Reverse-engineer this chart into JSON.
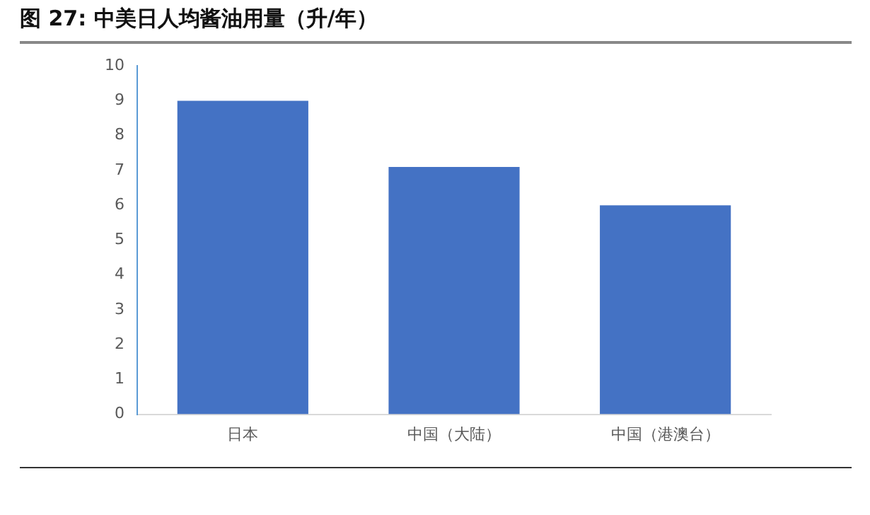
{
  "chart_data": {
    "type": "bar",
    "title": "图 27:  中美日人均酱油用量（升/年）",
    "categories": [
      "日本",
      "中国（大陆）",
      "中国（港澳台）"
    ],
    "values": [
      9,
      7.1,
      6
    ],
    "color": "#4472c4",
    "ylim": [
      0,
      10
    ],
    "yticks": [
      0,
      1,
      2,
      3,
      4,
      5,
      6,
      7,
      8,
      9,
      10
    ],
    "grid": false,
    "legend": false
  }
}
